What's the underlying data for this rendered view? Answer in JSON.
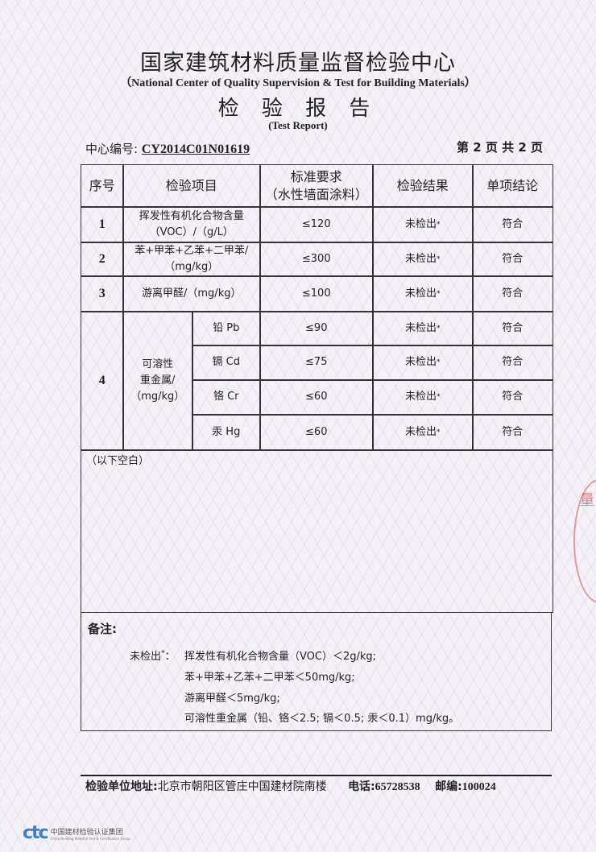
{
  "header": {
    "title": "国家建筑材料质量监督检验中心",
    "title_en": "（National Center of Quality Supervision & Test for Building Materials）",
    "report_title": "检 验 报 告",
    "report_title_en": "(Test Report)",
    "center_no_label": "中心编号:",
    "center_no": "CY2014C01N01619",
    "page_info": "第 2 页  共 2 页"
  },
  "table": {
    "columns": [
      "序号",
      "检验项目",
      "标准要求\n（水性墙面涂料）",
      "检验结果",
      "单项结论"
    ],
    "rows": [
      {
        "no": "1",
        "item": "挥发性有机化合物含量\n（VOC）/（g/L）",
        "standard": "≤120",
        "result": "未检出",
        "mark": "*",
        "conclusion": "符合"
      },
      {
        "no": "2",
        "item": "苯+甲苯+乙苯+二甲苯/\n（mg/kg）",
        "standard": "≤300",
        "result": "未检出",
        "mark": "*",
        "conclusion": "符合"
      },
      {
        "no": "3",
        "item": "游离甲醛/（mg/kg）",
        "standard": "≤100",
        "result": "未检出",
        "mark": "*",
        "conclusion": "符合"
      }
    ],
    "group": {
      "no": "4",
      "item": "可溶性\n重金属/\n（mg/kg）",
      "subrows": [
        {
          "item": "铅 Pb",
          "standard": "≤90",
          "result": "未检出",
          "mark": "*",
          "conclusion": "符合"
        },
        {
          "item": "镉 Cd",
          "standard": "≤75",
          "result": "未检出",
          "mark": "*",
          "conclusion": "符合"
        },
        {
          "item": "铬 Cr",
          "standard": "≤60",
          "result": "未检出",
          "mark": "*",
          "conclusion": "符合"
        },
        {
          "item": "汞 Hg",
          "standard": "≤60",
          "result": "未检出",
          "mark": "*",
          "conclusion": "符合"
        }
      ]
    },
    "blank_note": "（以下空白）"
  },
  "remarks": {
    "label": "备注:",
    "prefix": "未检出",
    "mark": "*",
    "colon": "：",
    "lines": [
      "挥发性有机化合物含量（VOC）＜2g/kg;",
      "苯+甲苯+乙苯+二甲苯＜50mg/kg;",
      "游离甲醛＜5mg/kg;",
      "可溶性重金属（铅、铬＜2.5; 镉＜0.5; 汞＜0.1）mg/kg。"
    ]
  },
  "footer": {
    "address_label": "检验单位地址:",
    "address": "北京市朝阳区管庄中国建材院南楼",
    "phone_label": "电话:",
    "phone": "65728538",
    "postcode_label": "邮编:",
    "postcode": "100024"
  },
  "logo": {
    "mark": "ctc",
    "name": "中国建材检验认证集团",
    "name_en": "China Building Material Test & Certification Group",
    "color": "#3a7fd5"
  },
  "stamp": {
    "text": "量",
    "color": "#dc3c3c"
  }
}
